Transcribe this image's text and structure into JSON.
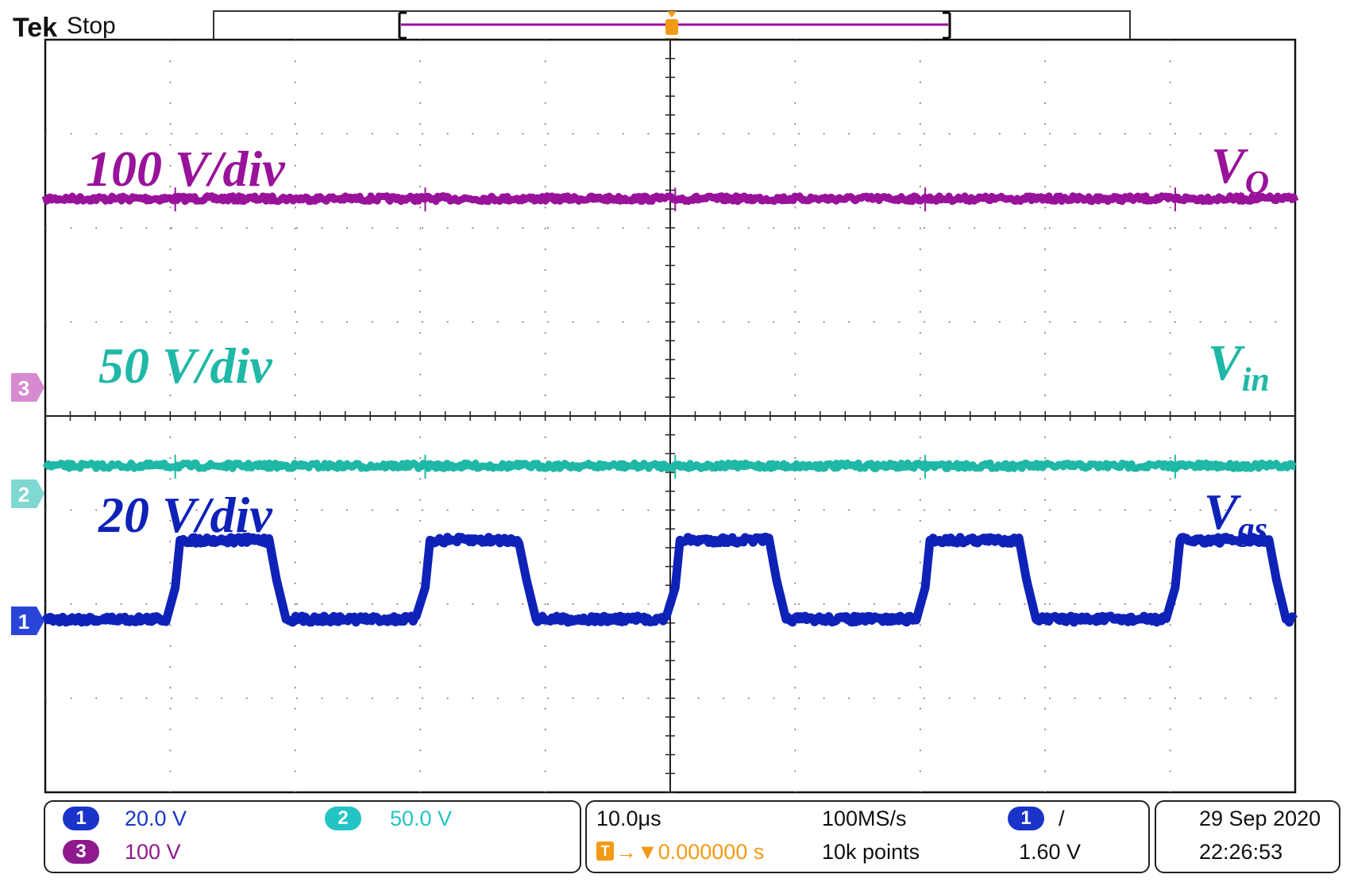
{
  "header": {
    "brand": "Tek",
    "state": "Stop"
  },
  "annotations": {
    "ch3": {
      "scale": "100 V/div",
      "signal": "V",
      "subscript": "O",
      "color": "#99129a"
    },
    "ch2": {
      "scale": "50 V/div",
      "signal": "V",
      "subscript": "in",
      "color": "#1fb8a6"
    },
    "ch1": {
      "scale": "20 V/div",
      "signal": "V",
      "subscript": "gs",
      "color": "#0f22b8"
    }
  },
  "markers": {
    "ch3": "3",
    "ch2": "2",
    "ch1": "1",
    "trigger": "T"
  },
  "status": {
    "ch1": {
      "num": "1",
      "value": "20.0 V",
      "color": "#1a33c9"
    },
    "ch2": {
      "num": "2",
      "value": "50.0 V",
      "color": "#22c4c4"
    },
    "ch3": {
      "num": "3",
      "value": "100 V",
      "color": "#8e1a8e"
    },
    "timebase": "10.0μs",
    "trigger_pos": "→▼0.000000 s",
    "trigger_badge": "T",
    "sample_rate": "100MS/s",
    "record_length": "10k points",
    "trig_source": "1",
    "trig_slope": "/",
    "trig_level": "1.60 V",
    "date": "29 Sep  2020",
    "time": "22:26:53"
  },
  "chart_data": {
    "type": "line",
    "x_divisions": 10,
    "y_divisions": 8,
    "grid": true,
    "x_per_div": "10.0μs",
    "series": [
      {
        "name": "V_O",
        "channel": 3,
        "color": "#99129a",
        "volts_per_div": "100 V/div",
        "level_div": 1.69,
        "kind": "dc"
      },
      {
        "name": "V_in",
        "channel": 2,
        "color": "#1fb8a6",
        "volts_per_div": "50 V/div",
        "level_div": 4.53,
        "kind": "dc"
      },
      {
        "name": "V_gs",
        "channel": 1,
        "color": "#0f22b8",
        "volts_per_div": "20 V/div",
        "kind": "square",
        "low_div": 6.16,
        "high_div": 5.32,
        "edges_div": [
          {
            "rise": 1.04,
            "fall": 1.85
          },
          {
            "rise": 3.04,
            "fall": 3.85
          },
          {
            "rise": 5.04,
            "fall": 5.85
          },
          {
            "rise": 7.04,
            "fall": 7.85
          },
          {
            "rise": 9.04,
            "fall": 9.85
          }
        ]
      }
    ]
  }
}
